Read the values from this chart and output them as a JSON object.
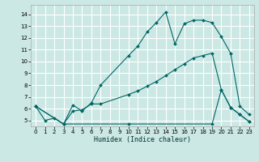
{
  "xlabel": "Humidex (Indice chaleur)",
  "background_color": "#cce8e4",
  "grid_color": "#ffffff",
  "line_color": "#006666",
  "xlim": [
    -0.5,
    23.5
  ],
  "ylim": [
    4.5,
    14.8
  ],
  "xticks": [
    0,
    1,
    2,
    3,
    4,
    5,
    6,
    7,
    8,
    9,
    10,
    11,
    12,
    13,
    14,
    15,
    16,
    17,
    18,
    19,
    20,
    21,
    22,
    23
  ],
  "yticks": [
    5,
    6,
    7,
    8,
    9,
    10,
    11,
    12,
    13,
    14
  ],
  "line1_x": [
    0,
    1,
    2,
    3,
    4,
    5,
    6,
    7,
    10,
    11,
    12,
    13,
    14,
    15,
    16,
    17,
    18,
    19,
    20,
    21,
    22,
    23
  ],
  "line1_y": [
    6.2,
    5.0,
    5.2,
    4.7,
    6.3,
    5.8,
    6.5,
    8.0,
    10.5,
    11.3,
    12.5,
    13.3,
    14.2,
    11.5,
    13.2,
    13.5,
    13.5,
    13.3,
    12.1,
    10.7,
    6.2,
    5.5
  ],
  "line2_x": [
    0,
    3,
    4,
    5,
    6,
    7,
    10,
    11,
    12,
    13,
    14,
    15,
    16,
    17,
    18,
    19,
    20,
    21,
    22,
    23
  ],
  "line2_y": [
    6.2,
    4.7,
    5.8,
    5.9,
    6.4,
    6.4,
    7.2,
    7.5,
    7.9,
    8.3,
    8.8,
    9.3,
    9.8,
    10.3,
    10.5,
    10.7,
    7.6,
    6.1,
    5.5,
    4.9
  ],
  "line3_x": [
    0,
    3,
    10,
    19,
    20,
    21,
    22,
    23
  ],
  "line3_y": [
    6.2,
    4.7,
    4.7,
    4.7,
    7.6,
    6.1,
    5.5,
    4.9
  ]
}
